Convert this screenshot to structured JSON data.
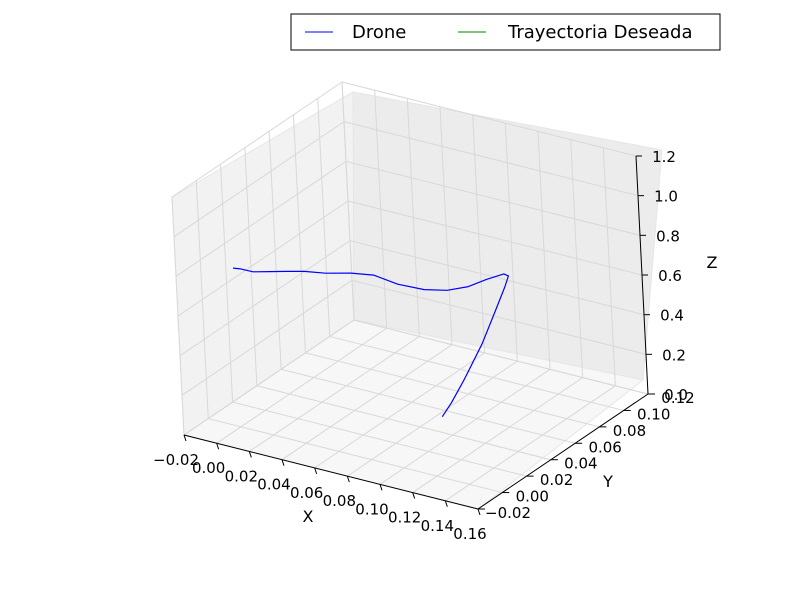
{
  "chart_data": {
    "type": "line",
    "projection": "3d",
    "title": "",
    "xlabel": "X",
    "ylabel": "Y",
    "zlabel": "Z",
    "xlim": [
      -0.02,
      0.16
    ],
    "ylim": [
      -0.02,
      0.12
    ],
    "zlim": [
      0.0,
      1.2
    ],
    "x_ticks": [
      "−0.02",
      "0.00",
      "0.02",
      "0.04",
      "0.06",
      "0.08",
      "0.10",
      "0.12",
      "0.14",
      "0.16"
    ],
    "y_ticks": [
      "−0.02",
      "0.00",
      "0.02",
      "0.04",
      "0.06",
      "0.08",
      "0.10",
      "0.12"
    ],
    "z_ticks": [
      "0.0",
      "0.2",
      "0.4",
      "0.6",
      "0.8",
      "1.0",
      "1.2"
    ],
    "grid": true,
    "legend_position": "top-right",
    "legend_columns": 2,
    "series": [
      {
        "name": "Drone",
        "color": "#0000ff",
        "x": [
          0.0,
          0.004,
          0.01,
          0.018,
          0.026,
          0.034,
          0.044,
          0.056,
          0.066,
          0.076,
          0.086,
          0.094,
          0.101,
          0.107,
          0.1125,
          0.1145,
          0.1135,
          0.111,
          0.107,
          0.101,
          0.097,
          0.094
        ],
        "y": [
          0.0,
          0.001,
          0.003,
          0.006,
          0.009,
          0.013,
          0.017,
          0.022,
          0.027,
          0.033,
          0.041,
          0.049,
          0.057,
          0.064,
          0.071,
          0.072,
          0.07,
          0.065,
          0.058,
          0.05,
          0.044,
          0.04
        ],
        "z": [
          0.8,
          0.8,
          0.79,
          0.795,
          0.8,
          0.8,
          0.795,
          0.8,
          0.79,
          0.74,
          0.7,
          0.68,
          0.68,
          0.7,
          0.71,
          0.7,
          0.65,
          0.55,
          0.4,
          0.24,
          0.14,
          0.08
        ]
      },
      {
        "name": "Trayectoria Deseada",
        "color": "#008000",
        "x": [],
        "y": [],
        "z": []
      }
    ]
  }
}
